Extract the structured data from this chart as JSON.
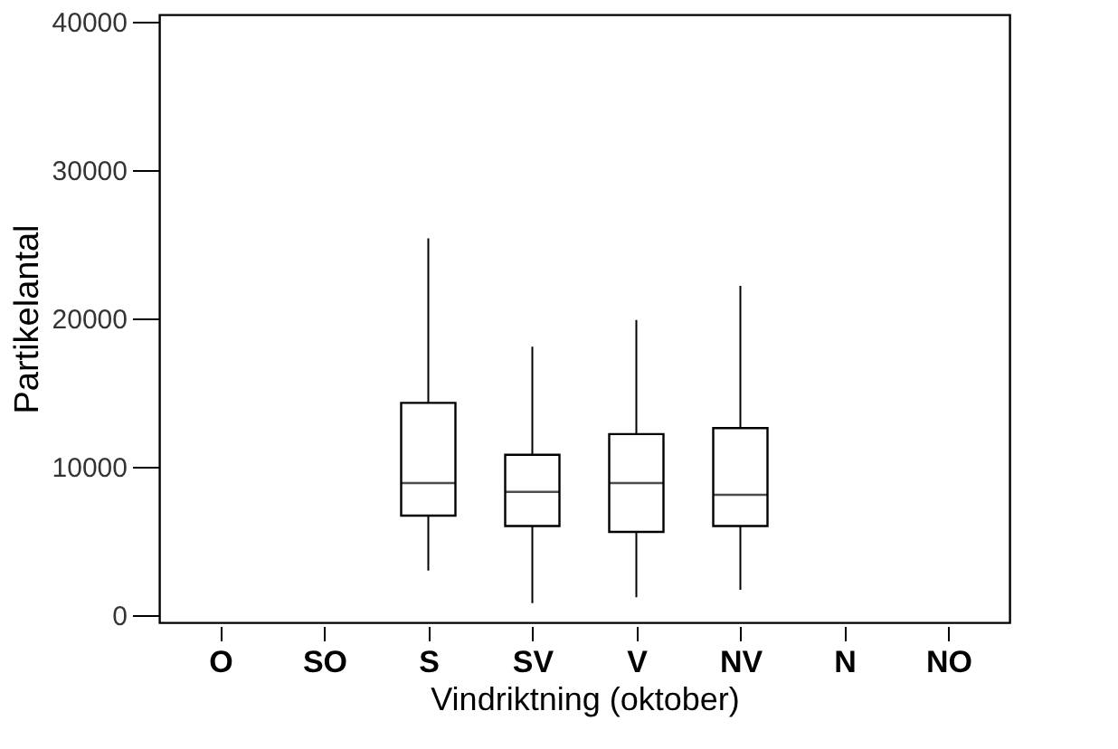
{
  "chart_data": {
    "type": "box",
    "xlabel": "Vindriktning (oktober)",
    "ylabel": "Partikelantal",
    "categories": [
      "O",
      "SO",
      "S",
      "SV",
      "V",
      "NV",
      "N",
      "NO"
    ],
    "boxes": [
      null,
      null,
      {
        "low": 3000,
        "q1": 6700,
        "median": 8900,
        "q3": 14300,
        "high": 25400
      },
      {
        "low": 800,
        "q1": 6000,
        "median": 8300,
        "q3": 10800,
        "high": 18100
      },
      {
        "low": 1200,
        "q1": 5600,
        "median": 8900,
        "q3": 12200,
        "high": 19900
      },
      {
        "low": 1700,
        "q1": 6000,
        "median": 8100,
        "q3": 12600,
        "high": 22200
      },
      null,
      null
    ],
    "ylim": [
      -500,
      40500
    ],
    "yticks": [
      0,
      10000,
      20000,
      30000,
      40000
    ],
    "grid": false
  }
}
